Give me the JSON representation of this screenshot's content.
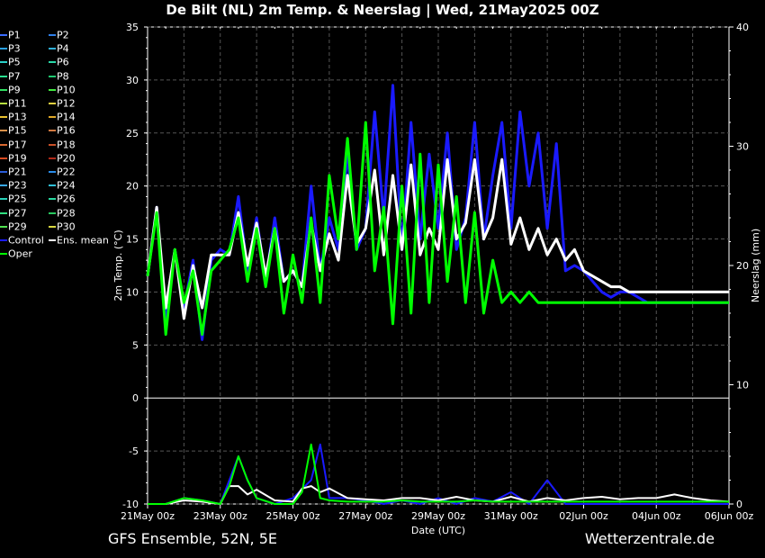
{
  "title": "De Bilt  (NL)  2m Temp. & Neerslag | Wed, 21May2025 00Z",
  "footer": {
    "left": "GFS Ensemble, 52N, 5E",
    "right": "Wetterzentrale.de"
  },
  "legend": [
    {
      "label": "P1",
      "color": "#3a6cff"
    },
    {
      "label": "P2",
      "color": "#2f7fe8"
    },
    {
      "label": "P3",
      "color": "#2a9fe0"
    },
    {
      "label": "P4",
      "color": "#2fb0d8"
    },
    {
      "label": "P5",
      "color": "#2ad0c8"
    },
    {
      "label": "P6",
      "color": "#29d8a8"
    },
    {
      "label": "P7",
      "color": "#2ae090"
    },
    {
      "label": "P8",
      "color": "#20c870"
    },
    {
      "label": "P9",
      "color": "#30e060"
    },
    {
      "label": "P10",
      "color": "#40e840"
    },
    {
      "label": "P11",
      "color": "#b8e040"
    },
    {
      "label": "P12",
      "color": "#e0d040"
    },
    {
      "label": "P13",
      "color": "#e8c030"
    },
    {
      "label": "P14",
      "color": "#e0a828"
    },
    {
      "label": "P15",
      "color": "#d89048"
    },
    {
      "label": "P16",
      "color": "#d07840"
    },
    {
      "label": "P17",
      "color": "#d86830"
    },
    {
      "label": "P18",
      "color": "#c85028"
    },
    {
      "label": "P19",
      "color": "#d84a20"
    },
    {
      "label": "P20",
      "color": "#b02818"
    },
    {
      "label": "P21",
      "color": "#2a5cd8"
    },
    {
      "label": "P22",
      "color": "#2a8ce8"
    },
    {
      "label": "P23",
      "color": "#38a8e8"
    },
    {
      "label": "P24",
      "color": "#30c0d8"
    },
    {
      "label": "P25",
      "color": "#28d0b8"
    },
    {
      "label": "P26",
      "color": "#28d8a0"
    },
    {
      "label": "P27",
      "color": "#30e080"
    },
    {
      "label": "P28",
      "color": "#28c860"
    },
    {
      "label": "P29",
      "color": "#50e050"
    },
    {
      "label": "P30",
      "color": "#d8d840"
    },
    {
      "label": "Control",
      "color": "#1a1aff"
    },
    {
      "label": "Ens. mean",
      "color": "#ffffff"
    },
    {
      "label": "Oper",
      "color": "#00ff00"
    }
  ],
  "chart_data": {
    "type": "line",
    "title": "De Bilt  (NL)  2m Temp. & Neerslag | Wed, 21May2025 00Z",
    "xlabel": "Date (UTC)",
    "ylabel": "2m Temp. (°C)",
    "ylabel_right": "Neerslag (mm)",
    "x_ticks": [
      "21May 00z",
      "23May 00z",
      "25May 00z",
      "27May 00z",
      "29May 00z",
      "31May 00z",
      "02Jun 00z",
      "04Jun 00z",
      "06Jun 00z"
    ],
    "y_ticks": [
      -10,
      -5,
      0,
      5,
      10,
      15,
      20,
      25,
      30,
      35
    ],
    "y_ticks_labels": [
      "-10",
      "-5",
      "0",
      "5",
      "10",
      "15",
      "20",
      "25",
      "30",
      "35"
    ],
    "y_right_ticks": [
      0,
      10,
      20,
      30,
      40
    ],
    "ylim": [
      -10,
      35
    ],
    "ylim_right": [
      0,
      40
    ],
    "x_range_hours": [
      0,
      384
    ],
    "grid": true,
    "series": [
      {
        "name": "Control",
        "color": "#1a1aff",
        "width": 3,
        "x": [
          0,
          6,
          12,
          18,
          24,
          30,
          36,
          42,
          48,
          54,
          60,
          66,
          72,
          78,
          84,
          90,
          96,
          102,
          108,
          114,
          120,
          126,
          132,
          138,
          144,
          150,
          156,
          162,
          168,
          174,
          180,
          186,
          192,
          198,
          204,
          210,
          216,
          222,
          228,
          234,
          240,
          246,
          252,
          258,
          264,
          270,
          276,
          282,
          288,
          294,
          300,
          306,
          312,
          318,
          324,
          330,
          336,
          342,
          348,
          354,
          360,
          366,
          372,
          378,
          384
        ],
        "y": [
          11.5,
          18,
          7.5,
          14,
          8.5,
          13,
          5.5,
          13,
          14,
          13.5,
          19,
          12,
          17,
          11,
          17,
          11,
          12,
          10.5,
          20,
          12,
          17,
          14,
          23,
          14,
          16,
          27,
          17,
          29.5,
          14,
          26,
          15,
          23,
          16,
          25,
          14,
          17,
          26,
          15,
          21,
          26,
          16,
          27,
          20,
          25,
          16,
          24,
          12,
          12.5,
          12,
          11,
          10,
          9.5,
          10,
          10,
          9.5,
          9,
          9,
          9,
          9,
          9,
          9,
          9,
          9,
          9,
          9
        ]
      },
      {
        "name": "Ens. mean",
        "color": "#ffffff",
        "width": 3,
        "x": [
          0,
          6,
          12,
          18,
          24,
          30,
          36,
          42,
          48,
          54,
          60,
          66,
          72,
          78,
          84,
          90,
          96,
          102,
          108,
          114,
          120,
          126,
          132,
          138,
          144,
          150,
          156,
          162,
          168,
          174,
          180,
          186,
          192,
          198,
          204,
          210,
          216,
          222,
          228,
          234,
          240,
          246,
          252,
          258,
          264,
          270,
          276,
          282,
          288,
          294,
          300,
          306,
          312,
          318,
          324,
          330,
          336,
          342,
          348,
          354,
          360,
          366,
          372,
          378,
          384
        ],
        "y": [
          11.5,
          18,
          8.5,
          14,
          7.5,
          12.5,
          8.5,
          13.5,
          13.5,
          13.5,
          17.5,
          12.5,
          16.5,
          11.5,
          16,
          11,
          12,
          10.5,
          16.5,
          12,
          15.5,
          13,
          21,
          14.5,
          16,
          21.5,
          13.5,
          21,
          14,
          22,
          13.5,
          16,
          14,
          22.5,
          15,
          16.5,
          22.5,
          15,
          17,
          22.5,
          14.5,
          17,
          14,
          16,
          13.5,
          15,
          13,
          14,
          12,
          11.5,
          11,
          10.5,
          10.5,
          10,
          10,
          10,
          10,
          10,
          10,
          10,
          10,
          10,
          10,
          10,
          10
        ]
      },
      {
        "name": "Oper",
        "color": "#00ff00",
        "width": 3,
        "x": [
          0,
          6,
          12,
          18,
          24,
          30,
          36,
          42,
          48,
          54,
          60,
          66,
          72,
          78,
          84,
          90,
          96,
          102,
          108,
          114,
          120,
          126,
          132,
          138,
          144,
          150,
          156,
          162,
          168,
          174,
          180,
          186,
          192,
          198,
          204,
          210,
          216,
          222,
          228,
          234,
          240,
          246,
          252,
          258,
          264,
          270,
          276,
          282,
          288,
          294,
          300,
          306,
          312,
          318,
          324,
          330,
          336,
          342,
          348,
          354,
          360,
          366,
          372,
          378,
          384
        ],
        "y": [
          11.5,
          17.5,
          6,
          14,
          9,
          12,
          6,
          12,
          13,
          14,
          17,
          11,
          16,
          10.5,
          16,
          8,
          13.5,
          9,
          17,
          9,
          21,
          15,
          24.5,
          14,
          26,
          12,
          18,
          7,
          20,
          8,
          23,
          9,
          22,
          11,
          19,
          9,
          17.5,
          8,
          13,
          9,
          10,
          9,
          10,
          9,
          9,
          9,
          9,
          9,
          9,
          9,
          9,
          9,
          9,
          9,
          9,
          9,
          9,
          9,
          9,
          9,
          9,
          9,
          9,
          9,
          9
        ]
      }
    ],
    "precip_series": [
      {
        "name": "Control",
        "color": "#1a1aff",
        "x": [
          0,
          12,
          24,
          36,
          48,
          60,
          66,
          72,
          84,
          96,
          108,
          114,
          120,
          132,
          144,
          156,
          168,
          180,
          192,
          204,
          216,
          228,
          240,
          252,
          264,
          276,
          288,
          300,
          312,
          324,
          336,
          348,
          360,
          372,
          384
        ],
        "y": [
          0,
          0,
          0.5,
          0.3,
          0,
          4,
          2,
          0.5,
          0,
          0.5,
          2,
          5,
          0.5,
          0.5,
          0.3,
          0,
          0.3,
          0,
          0.5,
          0,
          0.5,
          0.2,
          1,
          0,
          2,
          0,
          0,
          0,
          0,
          0,
          0,
          0,
          0,
          0,
          0
        ]
      },
      {
        "name": "Ens. mean",
        "color": "#ffffff",
        "x": [
          0,
          12,
          24,
          36,
          48,
          54,
          60,
          66,
          72,
          84,
          96,
          102,
          108,
          114,
          120,
          132,
          144,
          156,
          168,
          180,
          192,
          204,
          216,
          228,
          240,
          252,
          264,
          276,
          288,
          300,
          312,
          324,
          336,
          348,
          360,
          372,
          384
        ],
        "y": [
          0,
          0,
          0.3,
          0.2,
          0,
          1.5,
          1.5,
          0.8,
          1.2,
          0.3,
          0.2,
          1.3,
          1.5,
          1,
          1.3,
          0.5,
          0.4,
          0.3,
          0.5,
          0.5,
          0.3,
          0.6,
          0.3,
          0.2,
          0.6,
          0.2,
          0.5,
          0.3,
          0.5,
          0.6,
          0.4,
          0.5,
          0.5,
          0.8,
          0.5,
          0.3,
          0.2
        ]
      },
      {
        "name": "Oper",
        "color": "#00ff00",
        "x": [
          0,
          12,
          24,
          36,
          48,
          54,
          60,
          66,
          72,
          84,
          96,
          102,
          108,
          114,
          120,
          132,
          144,
          156,
          168,
          180,
          192,
          204,
          216,
          228,
          240,
          252,
          264,
          276,
          288,
          300,
          312,
          324,
          336,
          348,
          360,
          372,
          384
        ],
        "y": [
          0,
          0,
          0.5,
          0.3,
          0,
          1.5,
          4,
          2,
          0.5,
          0,
          0,
          1,
          5,
          0.5,
          0.3,
          0.2,
          0.2,
          0.2,
          0.3,
          0.2,
          0.2,
          0.2,
          0.3,
          0.2,
          0.2,
          0.2,
          0.2,
          0.2,
          0.2,
          0.2,
          0.2,
          0.2,
          0.2,
          0.2,
          0.2,
          0.2,
          0.2
        ]
      }
    ]
  }
}
